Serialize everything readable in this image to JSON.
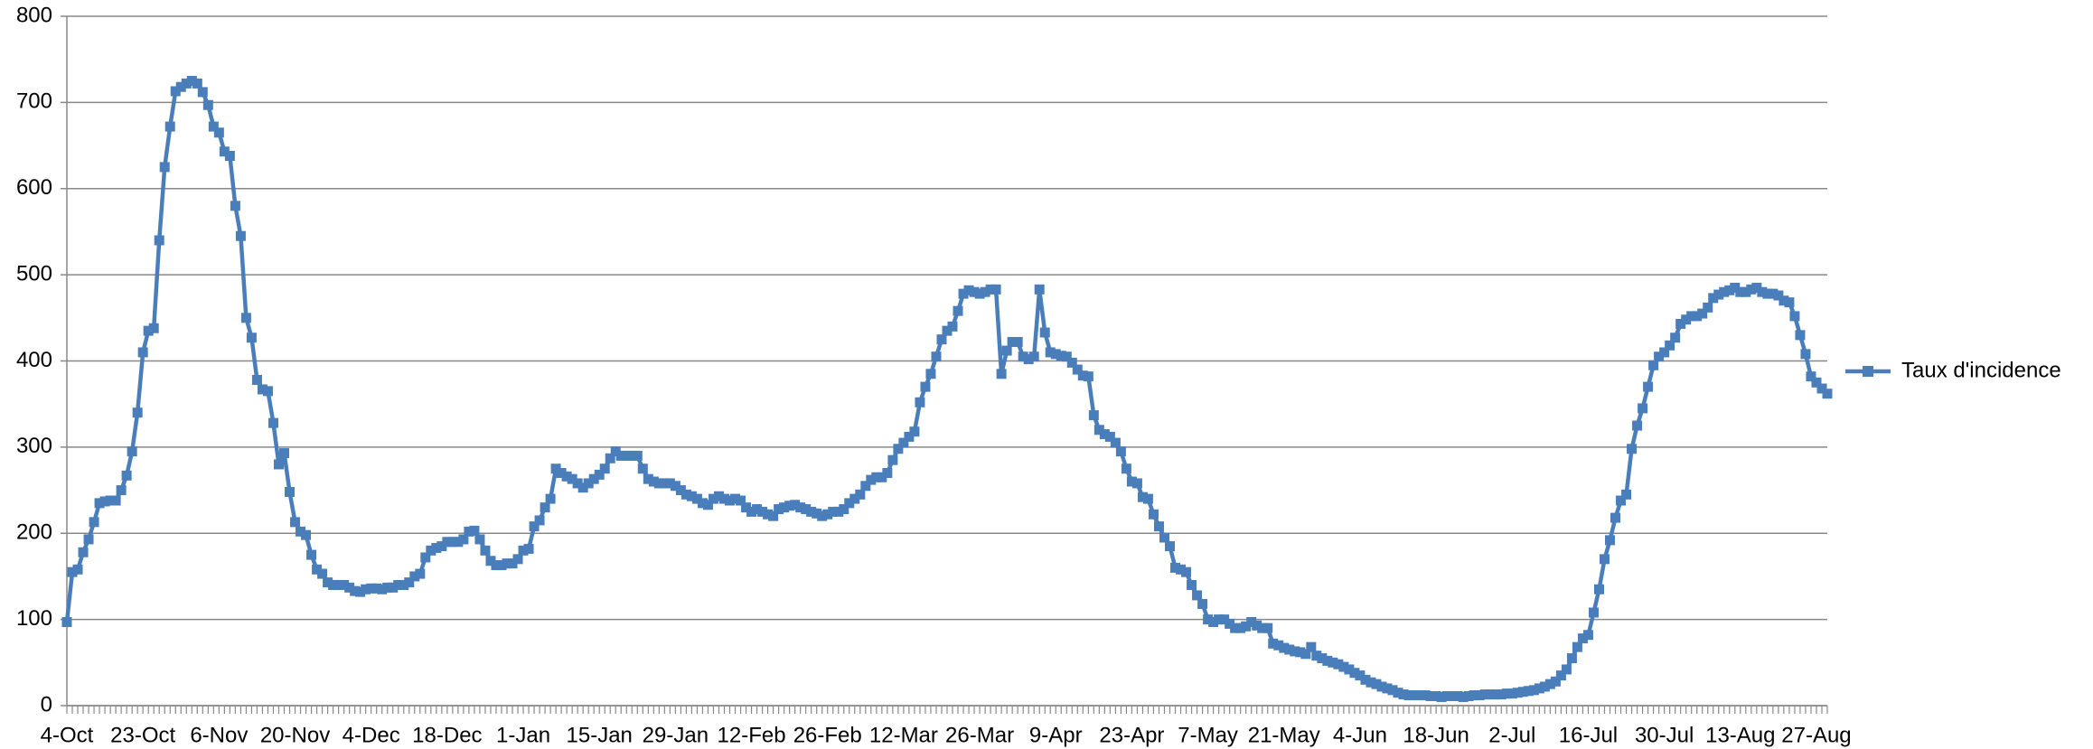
{
  "chart_data": {
    "type": "line",
    "categories": [
      "4-Oct",
      null,
      null,
      null,
      null,
      null,
      null,
      null,
      null,
      null,
      null,
      null,
      null,
      null,
      "23-Oct",
      null,
      null,
      null,
      null,
      null,
      null,
      null,
      null,
      null,
      null,
      null,
      null,
      null,
      "6-Nov",
      null,
      null,
      null,
      null,
      null,
      null,
      null,
      null,
      null,
      null,
      null,
      null,
      null,
      "20-Nov",
      null,
      null,
      null,
      null,
      null,
      null,
      null,
      null,
      null,
      null,
      null,
      null,
      null,
      "4-Dec",
      null,
      null,
      null,
      null,
      null,
      null,
      null,
      null,
      null,
      null,
      null,
      null,
      null,
      "18-Dec",
      null,
      null,
      null,
      null,
      null,
      null,
      null,
      null,
      null,
      null,
      null,
      null,
      null,
      "1-Jan",
      null,
      null,
      null,
      null,
      null,
      null,
      null,
      null,
      null,
      null,
      null,
      null,
      null,
      "15-Jan",
      null,
      null,
      null,
      null,
      null,
      null,
      null,
      null,
      null,
      null,
      null,
      null,
      null,
      "29-Jan",
      null,
      null,
      null,
      null,
      null,
      null,
      null,
      null,
      null,
      null,
      null,
      null,
      null,
      "12-Feb",
      null,
      null,
      null,
      null,
      null,
      null,
      null,
      null,
      null,
      null,
      null,
      null,
      null,
      "26-Feb",
      null,
      null,
      null,
      null,
      null,
      null,
      null,
      null,
      null,
      null,
      null,
      null,
      null,
      "12-Mar",
      null,
      null,
      null,
      null,
      null,
      null,
      null,
      null,
      null,
      null,
      null,
      null,
      null,
      "26-Mar",
      null,
      null,
      null,
      null,
      null,
      null,
      null,
      null,
      null,
      null,
      null,
      null,
      null,
      "9-Apr",
      null,
      null,
      null,
      null,
      null,
      null,
      null,
      null,
      null,
      null,
      null,
      null,
      null,
      "23-Apr",
      null,
      null,
      null,
      null,
      null,
      null,
      null,
      null,
      null,
      null,
      null,
      null,
      null,
      "7-May",
      null,
      null,
      null,
      null,
      null,
      null,
      null,
      null,
      null,
      null,
      null,
      null,
      null,
      "21-May",
      null,
      null,
      null,
      null,
      null,
      null,
      null,
      null,
      null,
      null,
      null,
      null,
      null,
      "4-Jun",
      null,
      null,
      null,
      null,
      null,
      null,
      null,
      null,
      null,
      null,
      null,
      null,
      null,
      "18-Jun",
      null,
      null,
      null,
      null,
      null,
      null,
      null,
      null,
      null,
      null,
      null,
      null,
      null,
      "2-Jul",
      null,
      null,
      null,
      null,
      null,
      null,
      null,
      null,
      null,
      null,
      null,
      null,
      null,
      "16-Jul",
      null,
      null,
      null,
      null,
      null,
      null,
      null,
      null,
      null,
      null,
      null,
      null,
      null,
      "30-Jul",
      null,
      null,
      null,
      null,
      null,
      null,
      null,
      null,
      null,
      null,
      null,
      null,
      null,
      "13-Aug",
      null,
      null,
      null,
      null,
      null,
      null,
      null,
      null,
      null,
      null,
      null,
      null,
      null,
      "27-Aug",
      null,
      null
    ],
    "series": [
      {
        "name": "Taux d'incidence",
        "color": "#4a7ebb",
        "values": [
          97,
          155,
          158,
          178,
          193,
          213,
          235,
          237,
          238,
          238,
          250,
          267,
          295,
          340,
          410,
          435,
          438,
          540,
          625,
          672,
          713,
          718,
          722,
          725,
          722,
          712,
          697,
          672,
          665,
          643,
          638,
          580,
          545,
          450,
          427,
          378,
          367,
          365,
          328,
          280,
          293,
          248,
          213,
          202,
          198,
          175,
          158,
          153,
          143,
          140,
          140,
          140,
          137,
          133,
          132,
          135,
          136,
          136,
          135,
          137,
          137,
          140,
          140,
          143,
          150,
          153,
          172,
          180,
          183,
          185,
          190,
          190,
          190,
          193,
          202,
          203,
          193,
          180,
          168,
          163,
          163,
          165,
          165,
          170,
          180,
          182,
          208,
          215,
          230,
          240,
          275,
          270,
          266,
          263,
          258,
          253,
          258,
          263,
          268,
          275,
          287,
          295,
          290,
          290,
          290,
          290,
          275,
          263,
          260,
          258,
          258,
          258,
          255,
          250,
          245,
          243,
          240,
          235,
          233,
          240,
          243,
          240,
          238,
          240,
          238,
          230,
          225,
          228,
          225,
          222,
          220,
          228,
          230,
          232,
          233,
          230,
          228,
          225,
          223,
          220,
          222,
          225,
          225,
          228,
          235,
          240,
          245,
          255,
          262,
          265,
          265,
          270,
          285,
          298,
          305,
          312,
          318,
          352,
          370,
          385,
          405,
          425,
          435,
          440,
          458,
          478,
          482,
          480,
          478,
          480,
          483,
          483,
          385,
          412,
          422,
          422,
          405,
          402,
          405,
          483,
          433,
          410,
          408,
          406,
          405,
          398,
          390,
          383,
          382,
          337,
          320,
          315,
          312,
          305,
          295,
          275,
          260,
          258,
          242,
          240,
          222,
          208,
          195,
          185,
          160,
          158,
          155,
          140,
          128,
          118,
          100,
          97,
          100,
          100,
          95,
          90,
          90,
          92,
          97,
          93,
          90,
          90,
          72,
          70,
          67,
          65,
          63,
          62,
          60,
          68,
          58,
          55,
          52,
          50,
          48,
          45,
          42,
          38,
          35,
          30,
          27,
          25,
          22,
          20,
          18,
          15,
          13,
          12,
          12,
          12,
          12,
          11,
          11,
          10,
          11,
          11,
          11,
          10,
          11,
          12,
          12,
          13,
          13,
          13,
          13,
          14,
          14,
          15,
          16,
          17,
          18,
          20,
          22,
          25,
          28,
          35,
          42,
          55,
          68,
          78,
          82,
          108,
          135,
          170,
          192,
          218,
          238,
          245,
          298,
          325,
          345,
          370,
          395,
          405,
          410,
          418,
          427,
          443,
          448,
          452,
          452,
          455,
          462,
          473,
          477,
          480,
          482,
          485,
          480,
          480,
          483,
          485,
          480,
          478,
          478,
          476,
          470,
          468,
          452,
          430,
          408,
          382,
          375,
          368,
          362
        ]
      }
    ],
    "ylim": [
      0,
      800
    ],
    "yticks": [
      0,
      100,
      200,
      300,
      400,
      500,
      600,
      700,
      800
    ],
    "grid": true,
    "legend": "right"
  }
}
